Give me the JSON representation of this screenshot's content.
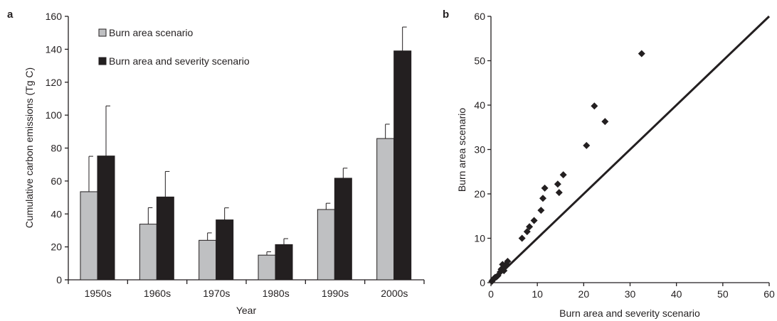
{
  "colors": {
    "grey_bar": "#bfc0c2",
    "black_bar": "#231f20",
    "axis": "#231f20"
  },
  "chart_data": [
    {
      "panel": "a",
      "type": "bar",
      "xlabel": "Year",
      "ylabel": "Cumulative carbon emissions (Tg C)",
      "ylim": [
        0,
        160
      ],
      "yticks": [
        "0",
        "20",
        "40",
        "60",
        "80",
        "100",
        "120",
        "140",
        "160"
      ],
      "categories": [
        "1950s",
        "1960s",
        "1970s",
        "1980s",
        "1990s",
        "2000s"
      ],
      "legend_position": "top-left",
      "series": [
        {
          "name": "Burn area scenario",
          "color": "#bfc0c2",
          "values": [
            53.5,
            33.8,
            24.0,
            15.0,
            42.7,
            85.8
          ],
          "error_upper": [
            21.5,
            10.0,
            4.5,
            2.0,
            3.8,
            8.7
          ]
        },
        {
          "name": "Burn area and severity scenario",
          "color": "#231f20",
          "values": [
            75.2,
            50.3,
            36.4,
            21.4,
            61.7,
            139.0
          ],
          "error_upper": [
            30.4,
            15.5,
            7.3,
            3.6,
            6.1,
            14.5
          ]
        }
      ]
    },
    {
      "panel": "b",
      "type": "scatter",
      "xlabel": "Burn area and severity scenario",
      "ylabel": "Burn area scenario",
      "xlim": [
        0,
        60
      ],
      "ylim": [
        0,
        60
      ],
      "xticks": [
        "0",
        "10",
        "20",
        "30",
        "40",
        "50",
        "60"
      ],
      "yticks": [
        "0",
        "10",
        "20",
        "30",
        "40",
        "50",
        "60"
      ],
      "reference_line": "1:1",
      "marker": "diamond",
      "x": [
        0.2,
        0.4,
        0.6,
        0.9,
        1.2,
        1.5,
        2.0,
        2.2,
        2.5,
        2.8,
        3.0,
        3.3,
        3.6,
        6.7,
        7.8,
        8.3,
        9.3,
        10.8,
        11.2,
        11.6,
        14.4,
        14.7,
        15.6,
        20.6,
        22.3,
        24.6,
        32.5
      ],
      "y": [
        0.3,
        0.6,
        0.9,
        1.2,
        1.3,
        1.6,
        2.4,
        3.0,
        4.1,
        2.7,
        3.5,
        4.2,
        4.8,
        10.0,
        11.5,
        12.6,
        14.0,
        16.3,
        19.0,
        21.3,
        22.2,
        20.3,
        24.3,
        30.9,
        39.8,
        36.3,
        51.6
      ]
    }
  ]
}
